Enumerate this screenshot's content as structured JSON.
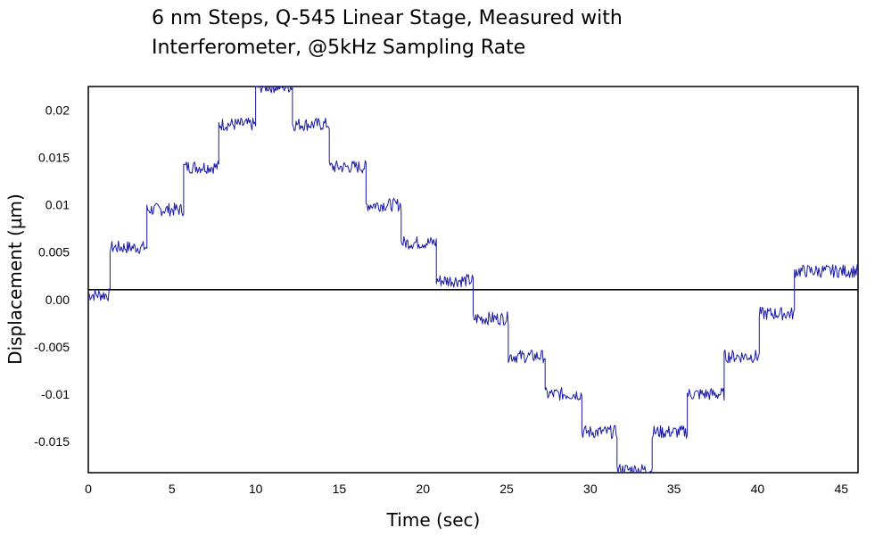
{
  "chart_data": {
    "type": "line",
    "title_line1": "6 nm Steps, Q-545 Linear Stage, Measured with",
    "title_line2": "Interferometer, @5kHz Sampling Rate",
    "xlabel": "Time (sec)",
    "ylabel": "Displacement (µm)",
    "xlim": [
      0,
      46
    ],
    "ylim": [
      -0.0183,
      0.0225
    ],
    "x_ticks": [
      0,
      5,
      10,
      15,
      20,
      25,
      30,
      35,
      40,
      45
    ],
    "x_tick_labels": [
      "0",
      "5",
      "10",
      "15",
      "20",
      "25",
      "30",
      "35",
      "40",
      "45"
    ],
    "y_ticks": [
      0.02,
      0.015,
      0.01,
      0.005,
      0.0,
      -0.005,
      -0.01,
      -0.015
    ],
    "y_tick_labels": [
      "0.02",
      "0.015",
      "0.01",
      "0.005",
      "0.00",
      "-0.005",
      "-0.01",
      "-0.015"
    ],
    "grid": false,
    "reference_line_y": 0.0,
    "series": [
      {
        "color": "#1a1aa8",
        "steps": [
          {
            "x_start": 0.0,
            "x_end": 1.3,
            "y": 0.0005
          },
          {
            "x_start": 1.3,
            "x_end": 3.5,
            "y": 0.0055
          },
          {
            "x_start": 3.5,
            "x_end": 5.7,
            "y": 0.0095
          },
          {
            "x_start": 5.7,
            "x_end": 7.8,
            "y": 0.014
          },
          {
            "x_start": 7.8,
            "x_end": 10.0,
            "y": 0.0185
          },
          {
            "x_start": 10.0,
            "x_end": 12.2,
            "y": 0.0225
          },
          {
            "x_start": 12.2,
            "x_end": 14.4,
            "y": 0.0185
          },
          {
            "x_start": 14.4,
            "x_end": 16.6,
            "y": 0.014
          },
          {
            "x_start": 16.6,
            "x_end": 18.7,
            "y": 0.01
          },
          {
            "x_start": 18.7,
            "x_end": 20.8,
            "y": 0.006
          },
          {
            "x_start": 20.8,
            "x_end": 23.0,
            "y": 0.002
          },
          {
            "x_start": 23.0,
            "x_end": 25.1,
            "y": -0.002
          },
          {
            "x_start": 25.1,
            "x_end": 27.3,
            "y": -0.006
          },
          {
            "x_start": 27.3,
            "x_end": 29.5,
            "y": -0.01
          },
          {
            "x_start": 29.5,
            "x_end": 31.6,
            "y": -0.014
          },
          {
            "x_start": 31.6,
            "x_end": 33.7,
            "y": -0.018
          },
          {
            "x_start": 33.7,
            "x_end": 35.8,
            "y": -0.014
          },
          {
            "x_start": 35.8,
            "x_end": 38.0,
            "y": -0.01
          },
          {
            "x_start": 38.0,
            "x_end": 40.1,
            "y": -0.006
          },
          {
            "x_start": 40.1,
            "x_end": 42.2,
            "y": -0.0015
          },
          {
            "x_start": 42.2,
            "x_end": 46.0,
            "y": 0.003
          }
        ]
      }
    ]
  }
}
